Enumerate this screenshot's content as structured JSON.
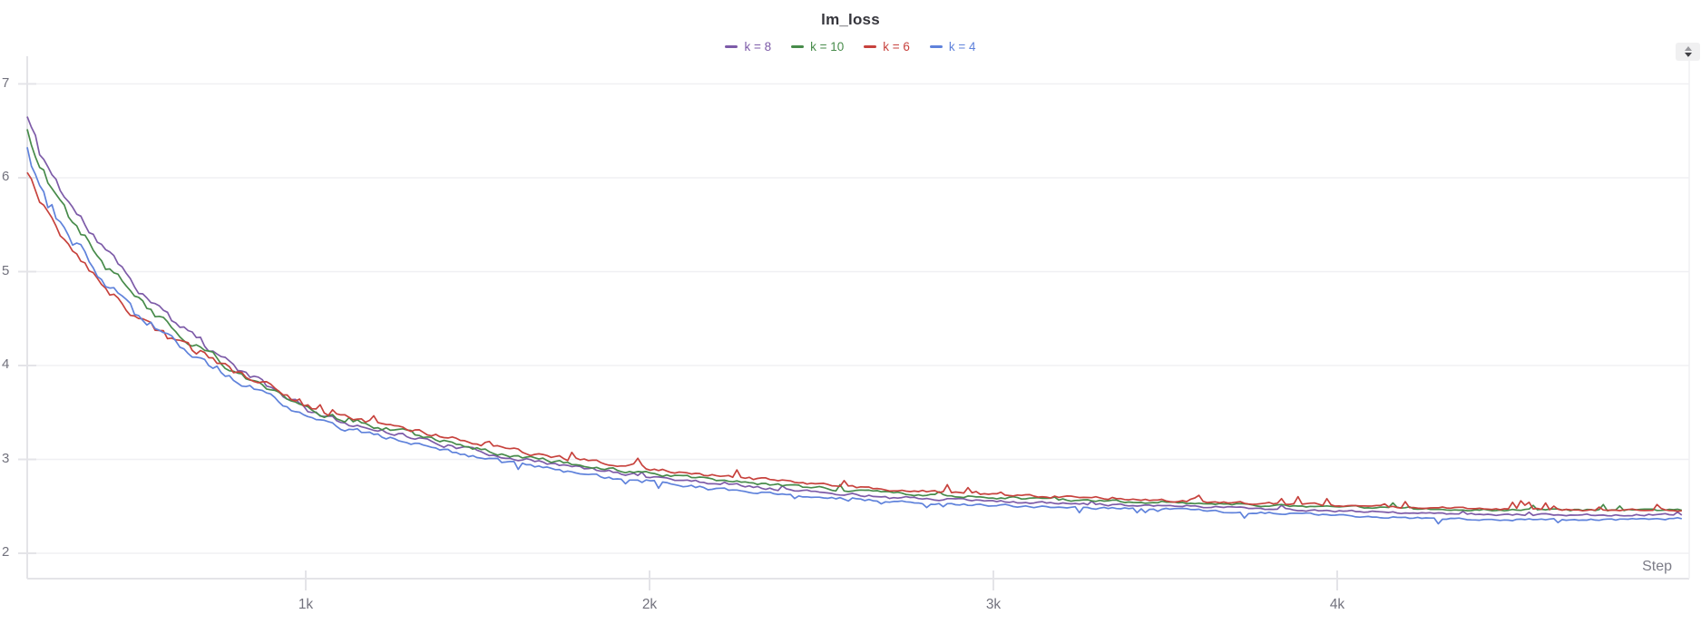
{
  "panel": {
    "stepper_tooltip": "resize"
  },
  "chart_data": {
    "type": "line",
    "title": "lm_loss",
    "xlabel": "Step",
    "ylabel": "",
    "grid": "horizontal",
    "legend_position": "top-center",
    "x_range": [
      190,
      5005
    ],
    "y_range": [
      2,
      7
    ],
    "y_tick_values": [
      2,
      3,
      4,
      5,
      6,
      7
    ],
    "y_tick_labels": [
      "2",
      "3",
      "4",
      "5",
      "6",
      "7"
    ],
    "x_ticks": [
      {
        "label": "1k",
        "value": 1000
      },
      {
        "label": "2k",
        "value": 2000
      },
      {
        "label": "3k",
        "value": 3000
      },
      {
        "label": "4k",
        "value": 4000
      }
    ],
    "steps": [
      190,
      225,
      275,
      325,
      400,
      475,
      550,
      625,
      700,
      800,
      900,
      1000,
      1100,
      1250,
      1400,
      1550,
      1700,
      1900,
      2100,
      2300,
      2500,
      2700,
      2900,
      3100,
      3300,
      3500,
      3700,
      3900,
      4100,
      4300,
      4500,
      4700,
      4900,
      5005
    ],
    "series": [
      {
        "name": "k = 8",
        "color": "#7D5BA8",
        "values": [
          6.65,
          6.28,
          5.96,
          5.66,
          5.3,
          4.97,
          4.69,
          4.44,
          4.23,
          3.97,
          3.76,
          3.53,
          3.4,
          3.29,
          3.16,
          3.05,
          2.96,
          2.86,
          2.78,
          2.71,
          2.65,
          2.6,
          2.57,
          2.54,
          2.52,
          2.51,
          2.49,
          2.46,
          2.44,
          2.42,
          2.41,
          2.41,
          2.41,
          2.41
        ],
        "noise": {
          "seed": 11,
          "spike_p": 0.03,
          "spike_amp": 0.05,
          "spike_dir": 1
        }
      },
      {
        "name": "k = 10",
        "color": "#478B4A",
        "values": [
          6.5,
          6.14,
          5.82,
          5.53,
          5.17,
          4.86,
          4.59,
          4.36,
          4.16,
          3.93,
          3.75,
          3.54,
          3.43,
          3.32,
          3.19,
          3.08,
          2.99,
          2.89,
          2.81,
          2.74,
          2.69,
          2.64,
          2.61,
          2.58,
          2.56,
          2.54,
          2.52,
          2.5,
          2.49,
          2.47,
          2.46,
          2.46,
          2.46,
          2.46
        ],
        "noise": {
          "seed": 22,
          "spike_p": 0.05,
          "spike_amp": 0.06,
          "spike_dir": 1
        }
      },
      {
        "name": "k = 6",
        "color": "#C7423D",
        "values": [
          6.05,
          5.71,
          5.43,
          5.18,
          4.88,
          4.63,
          4.42,
          4.24,
          4.09,
          3.92,
          3.77,
          3.58,
          3.47,
          3.36,
          3.24,
          3.13,
          3.04,
          2.94,
          2.86,
          2.79,
          2.73,
          2.68,
          2.64,
          2.61,
          2.59,
          2.56,
          2.54,
          2.52,
          2.5,
          2.48,
          2.47,
          2.46,
          2.46,
          2.46
        ],
        "noise": {
          "seed": 33,
          "spike_p": 0.1,
          "spike_amp": 0.08,
          "spike_dir": 1
        }
      },
      {
        "name": "k = 4",
        "color": "#5F82DB",
        "values": [
          6.28,
          5.92,
          5.6,
          5.32,
          4.98,
          4.68,
          4.44,
          4.23,
          4.05,
          3.84,
          3.67,
          3.46,
          3.34,
          3.23,
          3.1,
          2.99,
          2.9,
          2.8,
          2.72,
          2.65,
          2.6,
          2.55,
          2.52,
          2.5,
          2.48,
          2.47,
          2.44,
          2.42,
          2.39,
          2.37,
          2.36,
          2.36,
          2.36,
          2.37
        ],
        "noise": {
          "seed": 44,
          "spike_p": 0.06,
          "spike_amp": 0.06,
          "spike_dir": -1
        }
      }
    ],
    "colors": {
      "grid": "#f0f0f3",
      "axis": "#e4e4e8",
      "tick": "#e4e4e8",
      "title_text": "#35353c",
      "axis_text": "#72727d"
    }
  }
}
